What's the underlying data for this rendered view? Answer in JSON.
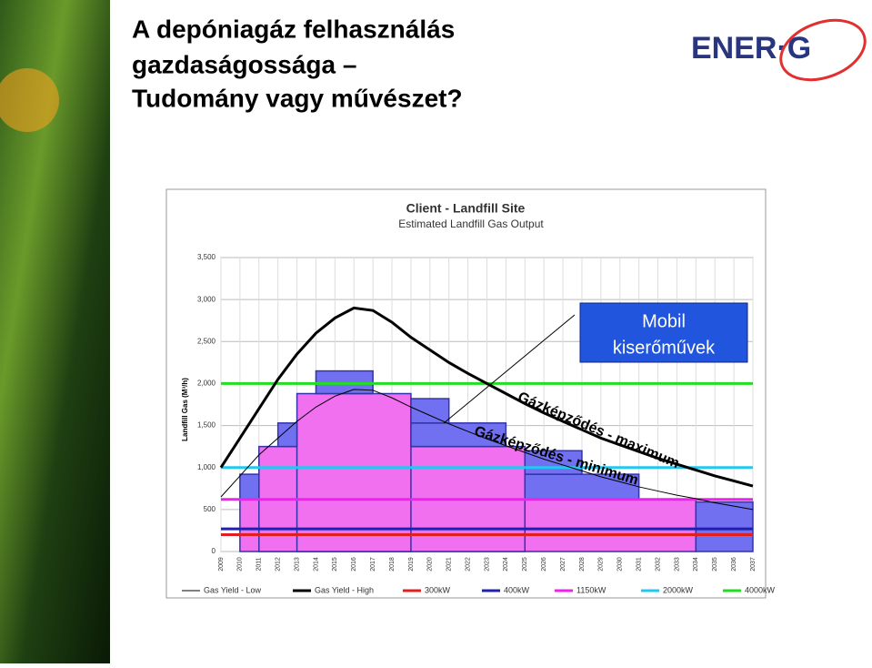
{
  "slide": {
    "title_lines": [
      "A depóniagáz felhasználás",
      "gazdaságossága –",
      "Tudomány vagy művészet?"
    ],
    "logo": "ENER·G"
  },
  "chart_data": {
    "type": "line",
    "title": "Client - Landfill Site",
    "subtitle": "Estimated Landfill Gas Output",
    "y_label": "Landfill Gas (M³/h)",
    "x": [
      2009,
      2010,
      2011,
      2012,
      2013,
      2014,
      2015,
      2016,
      2017,
      2018,
      2019,
      2020,
      2021,
      2022,
      2023,
      2024,
      2025,
      2026,
      2027,
      2028,
      2029,
      2030,
      2031,
      2032,
      2033,
      2034,
      2035,
      2036,
      2037
    ],
    "xlim": [
      2009,
      2037
    ],
    "xticks": [
      2009,
      2010,
      2011,
      2012,
      2013,
      2014,
      2015,
      2016,
      2017,
      2018,
      2019,
      2020,
      2021,
      2022,
      2023,
      2024,
      2025,
      2026,
      2027,
      2028,
      2029,
      2030,
      2031,
      2032,
      2033,
      2034,
      2035,
      2036,
      2037
    ],
    "ylim": [
      0,
      3500
    ],
    "yticks": [
      0,
      500,
      {
        "value": 1000,
        "label": "1,000"
      },
      {
        "value": 1500,
        "label": "1,500"
      },
      {
        "value": 2000,
        "label": "2,000"
      },
      {
        "value": 2500,
        "label": "2,500"
      },
      {
        "value": 3000,
        "label": "3,000"
      },
      {
        "value": 3500,
        "label": "3,500"
      }
    ],
    "grid": true,
    "series": [
      {
        "name": "Gas Yield - Low",
        "color": "#000000",
        "width": 1,
        "values": [
          650,
          900,
          1150,
          1350,
          1550,
          1720,
          1850,
          1930,
          1920,
          1830,
          1720,
          1620,
          1520,
          1430,
          1340,
          1260,
          1180,
          1100,
          1030,
          960,
          890,
          830,
          770,
          720,
          670,
          630,
          580,
          540,
          500
        ]
      },
      {
        "name": "Gas Yield - High",
        "color": "#000000",
        "width": 3,
        "values": [
          1000,
          1350,
          1700,
          2050,
          2350,
          2600,
          2780,
          2900,
          2870,
          2730,
          2550,
          2400,
          2250,
          2120,
          2000,
          1880,
          1760,
          1650,
          1550,
          1450,
          1350,
          1270,
          1190,
          1110,
          1040,
          970,
          900,
          840,
          780
        ]
      },
      {
        "name": "300kW",
        "color": "#e02020",
        "width": 3,
        "level": 200
      },
      {
        "name": "400kW",
        "color": "#2020b0",
        "width": 3,
        "level": 270
      },
      {
        "name": "1150kW",
        "color": "#ee22ee",
        "width": 3,
        "level": 620
      },
      {
        "name": "2000kW",
        "color": "#22c8f0",
        "width": 3,
        "level": 1000
      },
      {
        "name": "4000kW",
        "color": "#22dd22",
        "width": 3,
        "level": 2000
      }
    ],
    "blocks": [
      {
        "x0": 2010,
        "x1": 2034,
        "y0": 0,
        "y1": 620,
        "color": "#f070f0"
      },
      {
        "x0": 2011,
        "x1": 2025,
        "y0": 0,
        "y1": 1250,
        "color": "#f070f0"
      },
      {
        "x0": 2013,
        "x1": 2019,
        "y0": 0,
        "y1": 1880,
        "color": "#f070f0"
      },
      {
        "x0": 2010,
        "x1": 2011,
        "y0": 620,
        "y1": 920,
        "color": "#7070f0"
      },
      {
        "x0": 2012,
        "x1": 2013,
        "y0": 1250,
        "y1": 1530,
        "color": "#7070f0"
      },
      {
        "x0": 2014,
        "x1": 2017,
        "y0": 1880,
        "y1": 2150,
        "color": "#7070f0"
      },
      {
        "x0": 2019,
        "x1": 2024,
        "y0": 1250,
        "y1": 1530,
        "color": "#7070f0"
      },
      {
        "x0": 2019,
        "x1": 2021,
        "y0": 1530,
        "y1": 1820,
        "color": "#7070f0"
      },
      {
        "x0": 2025,
        "x1": 2031,
        "y0": 620,
        "y1": 920,
        "color": "#7070f0"
      },
      {
        "x0": 2025,
        "x1": 2028,
        "y0": 920,
        "y1": 1200,
        "color": "#7070f0"
      },
      {
        "x0": 2034,
        "x1": 2037,
        "y0": 0,
        "y1": 590,
        "color": "#7070f0"
      }
    ],
    "annotations": {
      "callout_lines": [
        "Mobil",
        "kiserőművek"
      ],
      "max_label": "Gázképződés - maximum",
      "min_label": "Gázképződés - minimum"
    }
  }
}
